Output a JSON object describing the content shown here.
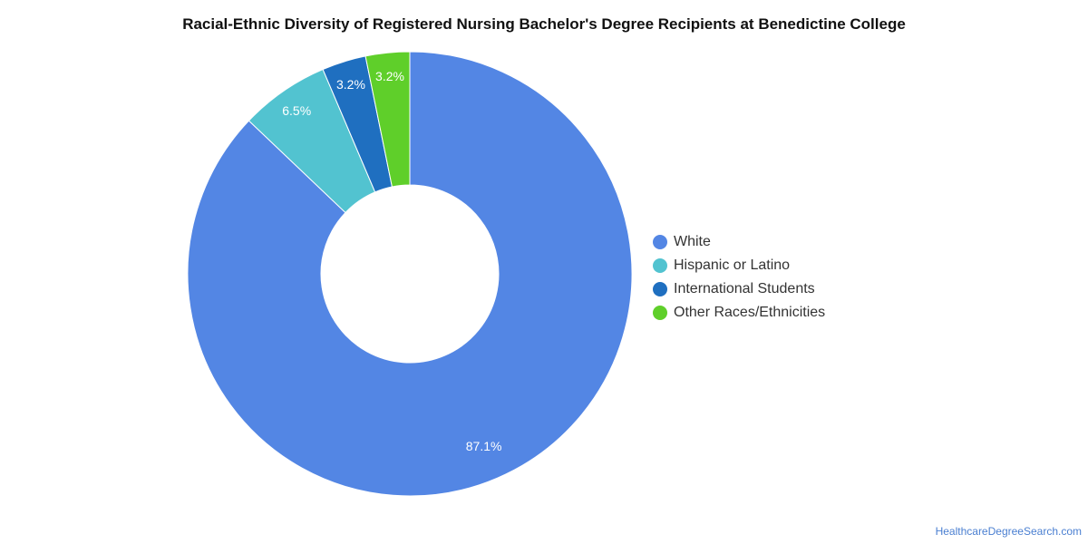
{
  "chart_data": {
    "type": "pie",
    "title": "Racial-Ethnic Diversity of Registered Nursing Bachelor's Degree Recipients at Benedictine College",
    "donut": true,
    "legend_position": "right",
    "slices": [
      {
        "label": "White",
        "value": 87.1,
        "display": "87.1%",
        "color": "#5386e4"
      },
      {
        "label": "Hispanic or Latino",
        "value": 6.5,
        "display": "6.5%",
        "color": "#52c3d0"
      },
      {
        "label": "International Students",
        "value": 3.2,
        "display": "3.2%",
        "color": "#1f6fc0"
      },
      {
        "label": "Other Races/Ethnicities",
        "value": 3.2,
        "display": "3.2%",
        "color": "#5fcf2a"
      }
    ]
  },
  "footer": {
    "credit": "HealthcareDegreeSearch.com"
  }
}
